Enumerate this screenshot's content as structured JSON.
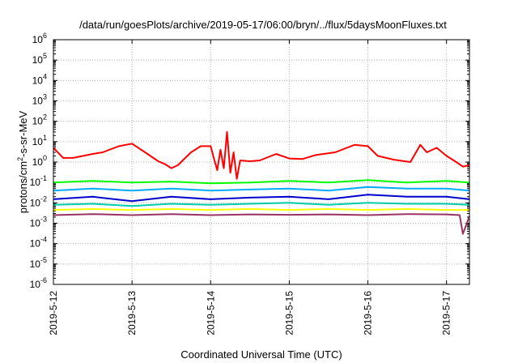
{
  "chart_data": {
    "type": "line",
    "title": "/data/run/goesPlots/archive/2019-05-17/06:00/bryn/../flux/5daysMoonFluxes.txt",
    "xlabel": "Coordinated Universal Time (UTC)",
    "ylabel": {
      "prefix": "protons/cm",
      "sup": "2",
      "suffix": "-s-sr-MeV"
    },
    "yscale": "log",
    "ylim": [
      1e-06,
      1000000.0
    ],
    "xlim": [
      "2019-05-12",
      "2019-05-17 07:00"
    ],
    "x_tick_labels": [
      "2019-5-12",
      "2019-5-13",
      "2019-5-14",
      "2019-5-15",
      "2019-5-16",
      "2019-5-17"
    ],
    "y_tick_labels": [
      {
        "base": "10",
        "exp": "-6"
      },
      {
        "base": "10",
        "exp": "-5"
      },
      {
        "base": "10",
        "exp": "-4"
      },
      {
        "base": "10",
        "exp": "-3"
      },
      {
        "base": "10",
        "exp": "-2"
      },
      {
        "base": "10",
        "exp": "-1"
      },
      {
        "base": "10",
        "exp": "0"
      },
      {
        "base": "10",
        "exp": "1"
      },
      {
        "base": "10",
        "exp": "2"
      },
      {
        "base": "10",
        "exp": "3"
      },
      {
        "base": "10",
        "exp": "4"
      },
      {
        "base": "10",
        "exp": "5"
      },
      {
        "base": "10",
        "exp": "6"
      }
    ],
    "grid": true,
    "series": [
      {
        "color": "#ff0000",
        "x": [
          "2019-05-12 00:00",
          "2019-05-12 03:00",
          "2019-05-12 06:00",
          "2019-05-12 12:00",
          "2019-05-12 15:00",
          "2019-05-12 20:00",
          "2019-05-13 00:00",
          "2019-05-13 04:00",
          "2019-05-13 08:00",
          "2019-05-13 10:00",
          "2019-05-13 12:00",
          "2019-05-13 14:00",
          "2019-05-13 18:00",
          "2019-05-13 21:00",
          "2019-05-14 00:00",
          "2019-05-14 01:00",
          "2019-05-14 02:00",
          "2019-05-14 03:00",
          "2019-05-14 04:00",
          "2019-05-14 05:00",
          "2019-05-14 06:00",
          "2019-05-14 07:00",
          "2019-05-14 08:00",
          "2019-05-14 09:00",
          "2019-05-14 12:00",
          "2019-05-14 15:00",
          "2019-05-14 20:00",
          "2019-05-15 00:00",
          "2019-05-15 04:00",
          "2019-05-15 08:00",
          "2019-05-15 14:00",
          "2019-05-15 20:00",
          "2019-05-16 00:00",
          "2019-05-16 03:00",
          "2019-05-16 08:00",
          "2019-05-16 13:00",
          "2019-05-16 16:00",
          "2019-05-16 18:00",
          "2019-05-16 21:00",
          "2019-05-17 00:00",
          "2019-05-17 03:00",
          "2019-05-17 05:00",
          "2019-05-17 07:00"
        ],
        "y": [
          5,
          1.6,
          1.6,
          2.5,
          3,
          6,
          8,
          3,
          1.1,
          0.8,
          0.5,
          0.7,
          3,
          6,
          6,
          1.5,
          0.4,
          4,
          0.5,
          30,
          0.3,
          3,
          0.15,
          1.2,
          1.1,
          1.2,
          2.5,
          1.5,
          1.4,
          2.2,
          3,
          7,
          6,
          2,
          1.3,
          1.0,
          7,
          3,
          5,
          2,
          1.0,
          0.6,
          0.7
        ]
      },
      {
        "color": "#00ff00",
        "x": [
          "2019-05-12 00:00",
          "2019-05-12 12:00",
          "2019-05-13 00:00",
          "2019-05-13 12:00",
          "2019-05-14 00:00",
          "2019-05-14 12:00",
          "2019-05-15 00:00",
          "2019-05-15 12:00",
          "2019-05-16 00:00",
          "2019-05-16 12:00",
          "2019-05-17 00:00",
          "2019-05-17 07:00"
        ],
        "y": [
          0.1,
          0.12,
          0.1,
          0.11,
          0.09,
          0.1,
          0.12,
          0.1,
          0.13,
          0.1,
          0.12,
          0.1
        ]
      },
      {
        "color": "#00aaff",
        "x": [
          "2019-05-12 00:00",
          "2019-05-12 12:00",
          "2019-05-13 00:00",
          "2019-05-13 12:00",
          "2019-05-14 00:00",
          "2019-05-14 12:00",
          "2019-05-15 00:00",
          "2019-05-15 12:00",
          "2019-05-16 00:00",
          "2019-05-16 12:00",
          "2019-05-17 00:00",
          "2019-05-17 07:00"
        ],
        "y": [
          0.04,
          0.05,
          0.04,
          0.05,
          0.04,
          0.045,
          0.05,
          0.04,
          0.06,
          0.05,
          0.05,
          0.04
        ]
      },
      {
        "color": "#0000cc",
        "x": [
          "2019-05-12 00:00",
          "2019-05-12 12:00",
          "2019-05-13 00:00",
          "2019-05-13 12:00",
          "2019-05-14 00:00",
          "2019-05-14 12:00",
          "2019-05-15 00:00",
          "2019-05-15 12:00",
          "2019-05-16 00:00",
          "2019-05-16 12:00",
          "2019-05-17 00:00",
          "2019-05-17 07:00"
        ],
        "y": [
          0.015,
          0.02,
          0.012,
          0.02,
          0.015,
          0.018,
          0.02,
          0.015,
          0.025,
          0.02,
          0.02,
          0.015
        ]
      },
      {
        "color": "#00ccaa",
        "x": [
          "2019-05-12 00:00",
          "2019-05-12 12:00",
          "2019-05-13 00:00",
          "2019-05-13 12:00",
          "2019-05-14 00:00",
          "2019-05-14 12:00",
          "2019-05-15 00:00",
          "2019-05-15 12:00",
          "2019-05-16 00:00",
          "2019-05-16 12:00",
          "2019-05-17 00:00",
          "2019-05-17 07:00"
        ],
        "y": [
          0.008,
          0.009,
          0.007,
          0.009,
          0.008,
          0.009,
          0.01,
          0.008,
          0.01,
          0.009,
          0.009,
          0.008
        ]
      },
      {
        "color": "#ffff00",
        "x": [
          "2019-05-12 00:00",
          "2019-05-12 12:00",
          "2019-05-13 00:00",
          "2019-05-13 12:00",
          "2019-05-14 00:00",
          "2019-05-14 12:00",
          "2019-05-15 00:00",
          "2019-05-15 12:00",
          "2019-05-16 00:00",
          "2019-05-16 12:00",
          "2019-05-17 00:00",
          "2019-05-17 07:00"
        ],
        "y": [
          0.0045,
          0.005,
          0.0045,
          0.005,
          0.0045,
          0.005,
          0.0045,
          0.005,
          0.0045,
          0.005,
          0.0045,
          0.0045
        ]
      },
      {
        "color": "#993366",
        "x": [
          "2019-05-12 00:00",
          "2019-05-12 12:00",
          "2019-05-13 00:00",
          "2019-05-13 12:00",
          "2019-05-14 00:00",
          "2019-05-14 12:00",
          "2019-05-15 00:00",
          "2019-05-15 12:00",
          "2019-05-16 00:00",
          "2019-05-16 12:00",
          "2019-05-17 00:00",
          "2019-05-17 04:00",
          "2019-05-17 05:00",
          "2019-05-17 07:00"
        ],
        "y": [
          0.0025,
          0.0028,
          0.0025,
          0.0028,
          0.0025,
          0.0027,
          0.0026,
          0.0027,
          0.0025,
          0.0028,
          0.0027,
          0.0025,
          0.0003,
          0.0022
        ]
      }
    ]
  }
}
